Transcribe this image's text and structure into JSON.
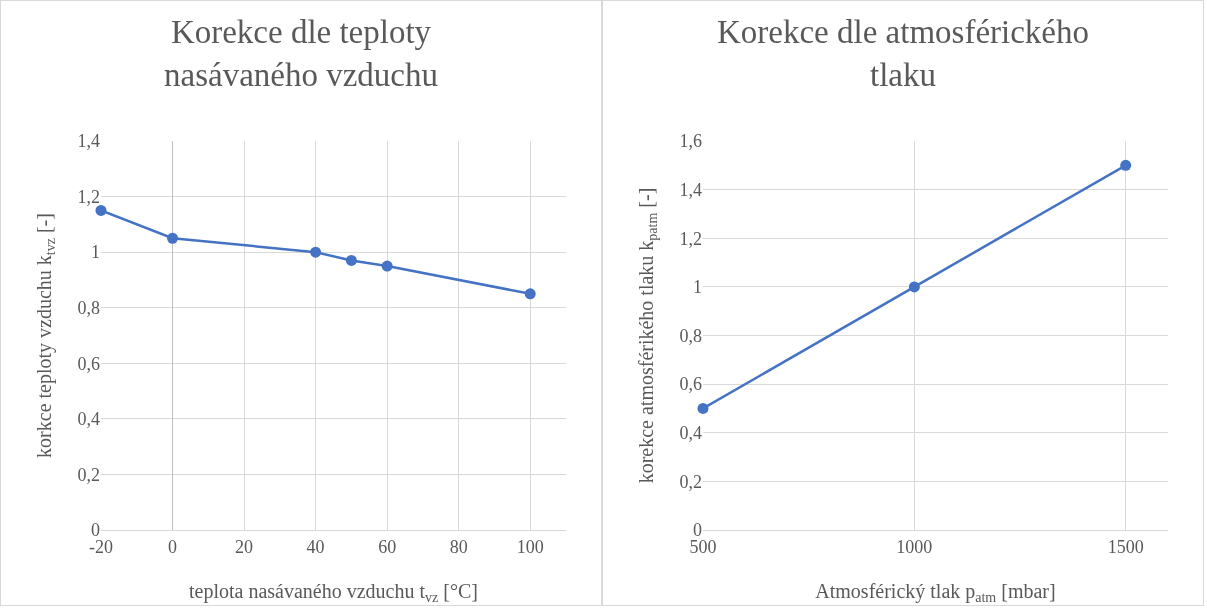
{
  "chart_data": [
    {
      "type": "line",
      "title": "Korekce dle teploty\nnasávaného vzduchu",
      "xlabel": "teplota nasávaného vzduchu t$_{vz}$ [°C]",
      "ylabel": "korkce teploty vzduchu k$_{tvz}$ [-]",
      "x": [
        -20,
        0,
        40,
        50,
        60,
        100
      ],
      "series": [
        {
          "color": "#4472c4",
          "values": [
            1.15,
            1.05,
            1.0,
            0.97,
            0.95,
            0.85
          ]
        }
      ],
      "xlim": [
        -20,
        110
      ],
      "xticks": [
        -20,
        0,
        20,
        40,
        60,
        80,
        100
      ],
      "ylim": [
        0,
        1.4
      ],
      "yticks": [
        {
          "value": 0,
          "label": "0"
        },
        {
          "value": 0.2,
          "label": "0,2"
        },
        {
          "value": 0.4,
          "label": "0,4"
        },
        {
          "value": 0.6,
          "label": "0,6"
        },
        {
          "value": 0.8,
          "label": "0,8"
        },
        {
          "value": 1,
          "label": "1"
        },
        {
          "value": 1.2,
          "label": "1,2"
        },
        {
          "value": 1.4,
          "label": "1,4"
        }
      ],
      "grid": true,
      "marker": "circle",
      "line_style": "solid"
    },
    {
      "type": "line",
      "title": "Korekce dle atmosférického\ntlaku",
      "xlabel": "Atmosférický tlak p$_{atm}$ [mbar]",
      "ylabel": "korekce atmosférikého tlaku k$_{patm}$ [-]",
      "x": [
        500,
        1000,
        1500
      ],
      "series": [
        {
          "color": "#4472c4",
          "values": [
            0.5,
            1.0,
            1.5
          ]
        }
      ],
      "xlim": [
        500,
        1600
      ],
      "xticks": [
        500,
        1000,
        1500
      ],
      "ylim": [
        0,
        1.6
      ],
      "yticks": [
        {
          "value": 0,
          "label": "0"
        },
        {
          "value": 0.2,
          "label": "0,2"
        },
        {
          "value": 0.4,
          "label": "0,4"
        },
        {
          "value": 0.6,
          "label": "0,6"
        },
        {
          "value": 0.8,
          "label": "0,8"
        },
        {
          "value": 1,
          "label": "1"
        },
        {
          "value": 1.2,
          "label": "1,2"
        },
        {
          "value": 1.4,
          "label": "1,4"
        },
        {
          "value": 1.6,
          "label": "1,6"
        }
      ],
      "grid": true,
      "marker": "circle",
      "line_style": "solid"
    }
  ]
}
